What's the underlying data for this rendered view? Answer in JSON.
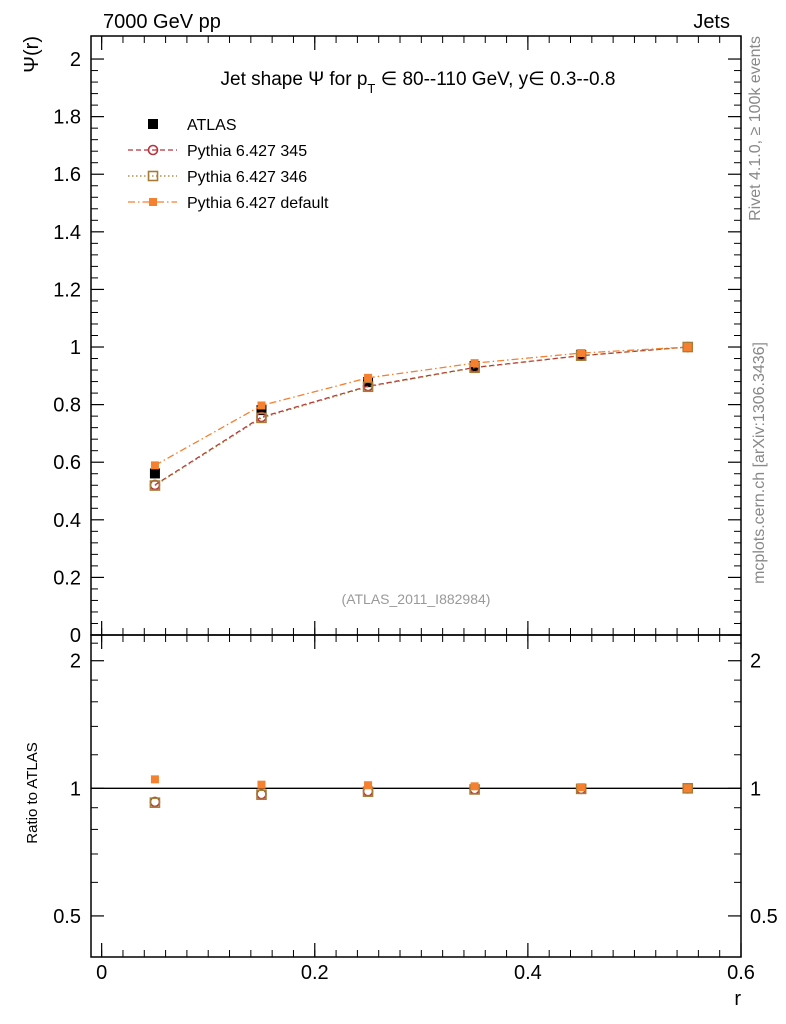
{
  "header": {
    "left": "7000 GeV pp",
    "right": "Jets"
  },
  "side_labels": {
    "rivet": "Rivet 4.1.0, ≥ 100k events",
    "mcplots": "mcplots.cern.ch [arXiv:1306.3436]"
  },
  "watermark": "(ATLAS_2011_I882984)",
  "colors": {
    "atlas": "#000000",
    "p345": "#b8323c",
    "p346": "#a67c36",
    "pdefault": "#f58030",
    "frame": "#000000",
    "side_text": "#888888"
  },
  "chart_data": [
    {
      "type": "line",
      "panel": "main",
      "title": "Jet shape Ψ for p_T ∈ 80--110 GeV, y∈ 0.3--0.8",
      "title_parts": {
        "pre": "Jet shape Ψ for p",
        "sub": "T",
        "post": " ∈ 80--110 GeV, y∈ 0.3--0.8"
      },
      "ylabel": "Ψ(r)",
      "xlim": [
        -0.01,
        0.6
      ],
      "ylim": [
        0,
        2.08
      ],
      "yticks": [
        0,
        0.2,
        0.4,
        0.6,
        0.8,
        1,
        1.2,
        1.4,
        1.6,
        1.8,
        2
      ],
      "ytick_labels": [
        "0",
        "0.2",
        "0.4",
        "0.6",
        "0.8",
        "1",
        "1.2",
        "1.4",
        "1.6",
        "1.8",
        "2"
      ],
      "x": [
        0.05,
        0.15,
        0.25,
        0.35,
        0.45,
        0.55
      ],
      "legend_position": "top-left",
      "series": [
        {
          "name": "ATLAS",
          "key": "atlas",
          "marker": "filled-square",
          "line": "none",
          "values": [
            0.561,
            0.781,
            0.878,
            0.934,
            0.973,
            1.0
          ]
        },
        {
          "name": "Pythia 6.427 345",
          "key": "p345",
          "marker": "open-circle",
          "line": "dashed",
          "values": [
            0.521,
            0.757,
            0.864,
            0.929,
            0.97,
            1.0
          ]
        },
        {
          "name": "Pythia 6.427 346",
          "key": "p346",
          "marker": "open-square",
          "line": "dotted",
          "values": [
            0.519,
            0.754,
            0.862,
            0.928,
            0.97,
            1.0
          ]
        },
        {
          "name": "Pythia 6.427 default",
          "key": "pdefault",
          "marker": "filled-square-small",
          "line": "dashdot",
          "values": [
            0.589,
            0.797,
            0.893,
            0.944,
            0.979,
            1.0
          ]
        }
      ]
    },
    {
      "type": "line",
      "panel": "ratio",
      "ylabel": "Ratio to ATLAS",
      "xlabel": "r",
      "xlim": [
        -0.01,
        0.6
      ],
      "ylim": [
        0.4,
        2.3
      ],
      "yscale": "log",
      "yticks": [
        0.5,
        1,
        2
      ],
      "ytick_labels": [
        "0.5",
        "1",
        "2"
      ],
      "xticks": [
        0,
        0.2,
        0.4,
        0.6
      ],
      "xtick_labels": [
        "0",
        "0.2",
        "0.4",
        "0.6"
      ],
      "reference_line": 1,
      "x": [
        0.05,
        0.15,
        0.25,
        0.35,
        0.45,
        0.55
      ],
      "series": [
        {
          "name": "Pythia 6.427 345",
          "key": "p345",
          "values": [
            0.929,
            0.969,
            0.984,
            0.995,
            0.997,
            1.0
          ]
        },
        {
          "name": "Pythia 6.427 346",
          "key": "p346",
          "values": [
            0.925,
            0.966,
            0.982,
            0.994,
            0.997,
            1.0
          ]
        },
        {
          "name": "Pythia 6.427 default",
          "key": "pdefault",
          "values": [
            1.05,
            1.02,
            1.017,
            1.011,
            1.006,
            1.0
          ]
        }
      ]
    }
  ]
}
